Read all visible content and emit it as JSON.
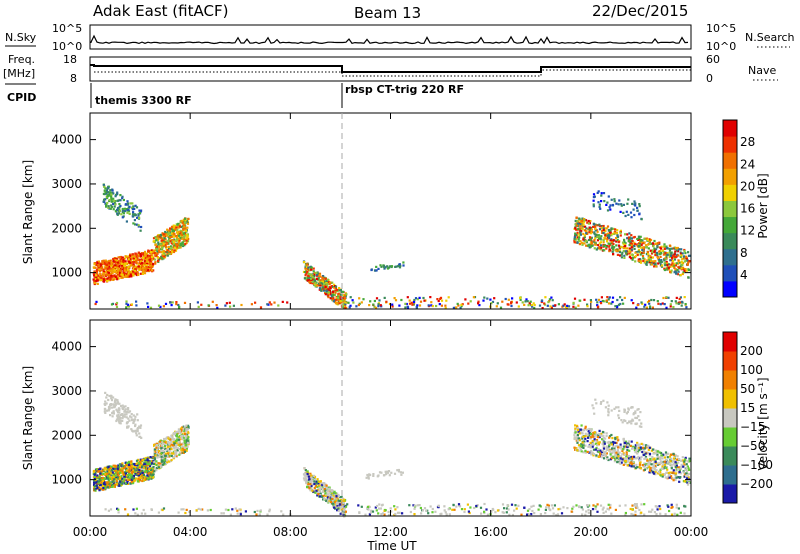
{
  "header": {
    "radar": "Adak East (fitACF)",
    "beam": "Beam 13",
    "date": "22/Dec/2015"
  },
  "noise_panel": {
    "left_label": "N.Sky",
    "right_label": "N.Search",
    "left_ticks": [
      "10^5",
      "10^0"
    ],
    "right_ticks": [
      "10^5",
      "10^0"
    ]
  },
  "freq_panel": {
    "left_label_1": "Freq.",
    "left_label_2": "[MHz]",
    "left_ticks": [
      "18",
      "8"
    ],
    "right_label": "Nave",
    "right_ticks": [
      "60",
      "0"
    ]
  },
  "cpid_panel": {
    "label": "CPID",
    "modes": [
      {
        "name": "themis 3300 RF",
        "start_hour": 0
      },
      {
        "name": "rbsp CT-trig 220 RF",
        "start_hour": 10
      }
    ]
  },
  "chart_data": [
    {
      "type": "heatmap",
      "ylabel": "Slant Range [km]",
      "xlabel": "",
      "y_ticks": [
        "4000",
        "3000",
        "2000",
        "1000"
      ],
      "x_range_hours": [
        0,
        24
      ],
      "y_range_km": [
        180,
        4600
      ],
      "colorbar": {
        "label": "Power [dB]",
        "ticks": [
          "28",
          "24",
          "20",
          "16",
          "12",
          "8",
          "4"
        ],
        "range": [
          0,
          30
        ],
        "colors": [
          "#0000ff",
          "#1f4fb8",
          "#2e6f8e",
          "#3a8a5a",
          "#44a838",
          "#8cc83c",
          "#f0d000",
          "#f2a000",
          "#f07000",
          "#ee3000",
          "#e00000"
        ]
      }
    },
    {
      "type": "heatmap",
      "ylabel": "Slant Range [km]",
      "xlabel": "Time UT",
      "y_ticks": [
        "4000",
        "3000",
        "2000",
        "1000"
      ],
      "x_ticks": [
        "00:00",
        "04:00",
        "08:00",
        "12:00",
        "16:00",
        "20:00",
        "00:00"
      ],
      "x_range_hours": [
        0,
        24
      ],
      "y_range_km": [
        180,
        4600
      ],
      "colorbar": {
        "label": "Velocity [m s⁻¹]",
        "ticks": [
          "200",
          "100",
          "50",
          "15",
          "−15",
          "−50",
          "−100",
          "−200"
        ],
        "colors": [
          "#1a1aa8",
          "#2e6e8e",
          "#3a8a5a",
          "#66cc33",
          "#c8c8c0",
          "#f0c000",
          "#f08000",
          "#f04000",
          "#e00000"
        ]
      }
    }
  ],
  "echo_regions_note": "",
  "velocity_regions_note": ""
}
